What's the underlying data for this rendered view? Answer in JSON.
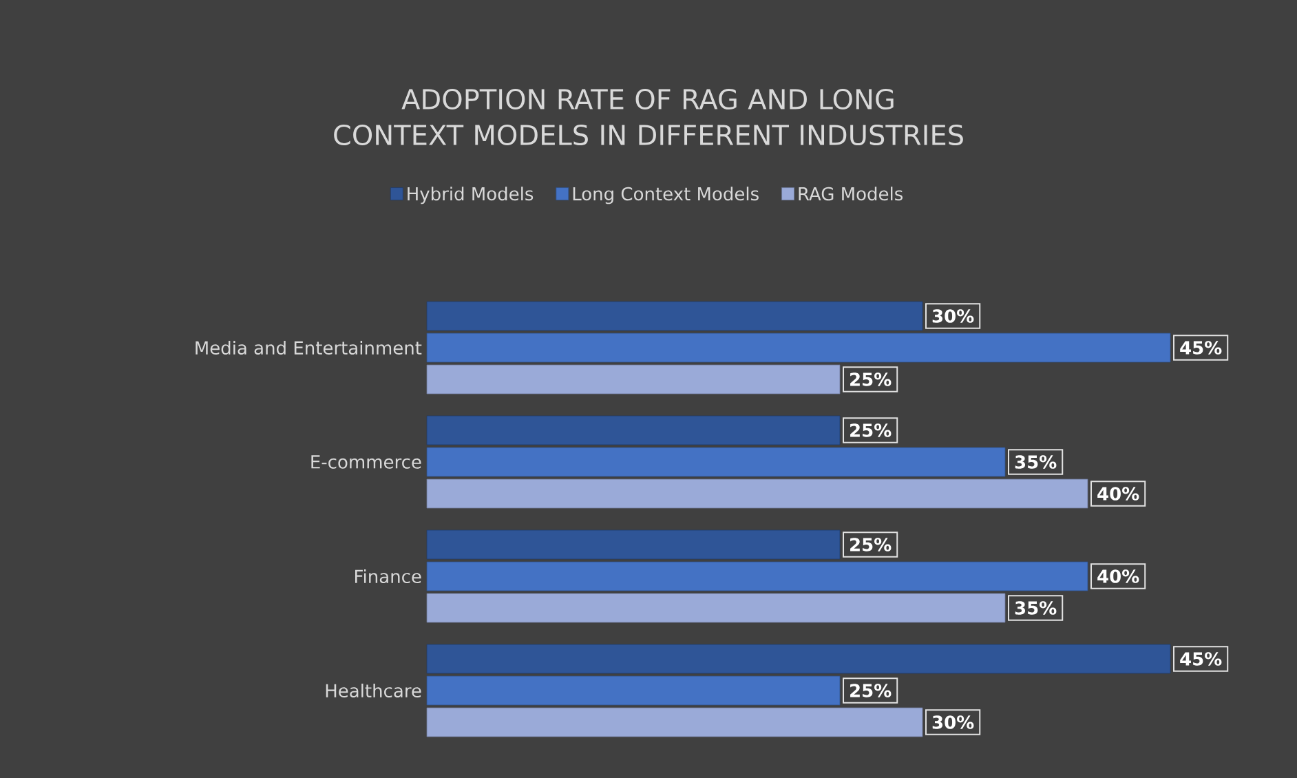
{
  "chart_data": {
    "type": "bar",
    "orientation": "horizontal",
    "title": "ADOPTION RATE OF RAG AND LONG CONTEXT MODELS IN DIFFERENT INDUSTRIES",
    "categories": [
      "Media and Entertainment",
      "E-commerce",
      "Finance",
      "Healthcare"
    ],
    "series": [
      {
        "name": "Hybrid Models",
        "color": "#2f5597",
        "values": [
          30,
          25,
          25,
          45
        ],
        "value_labels": [
          "30%",
          "25%",
          "25%",
          "45%"
        ]
      },
      {
        "name": "Long Context Models",
        "color": "#4472c4",
        "values": [
          45,
          35,
          40,
          25
        ],
        "value_labels": [
          "45%",
          "35%",
          "40%",
          "25%"
        ]
      },
      {
        "name": "RAG Models",
        "color": "#9aaad8",
        "values": [
          25,
          40,
          35,
          30
        ],
        "value_labels": [
          "25%",
          "40%",
          "35%",
          "30%"
        ]
      }
    ],
    "legend": "top"
  }
}
